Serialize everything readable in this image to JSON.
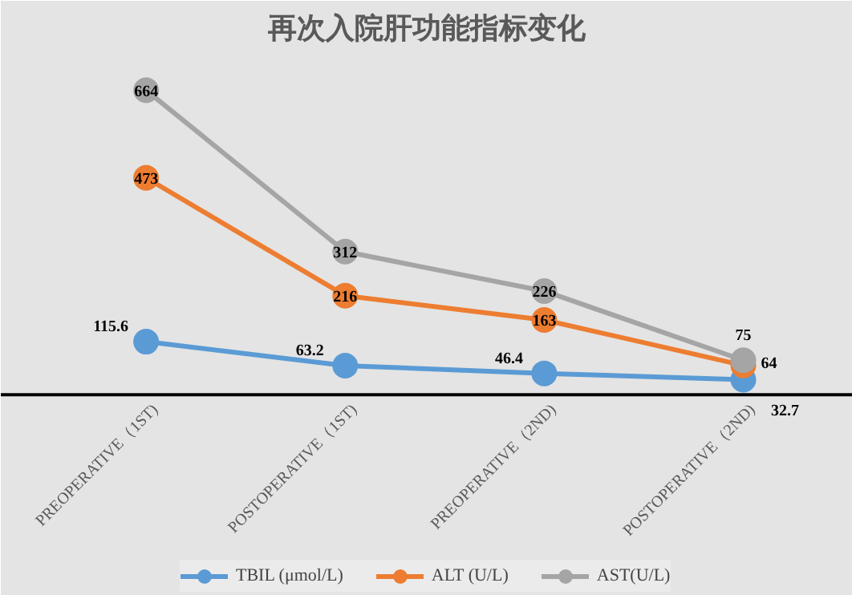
{
  "chart_data": {
    "type": "line",
    "title": "再次入院肝功能指标变化",
    "categories": [
      "PREOPERATIVE（1ST)",
      "POSTOPERATIVE（1ST)",
      "PREOPERATIVE（2ND)",
      "POSTOPERATIVE（2ND)"
    ],
    "series": [
      {
        "name": "TBIL (μmol/L)",
        "color": "#5b9bd5",
        "values": [
          115.6,
          63.2,
          46.4,
          32.7
        ]
      },
      {
        "name": "ALT (U/L)",
        "color": "#ed7d31",
        "values": [
          473,
          216,
          163,
          64
        ]
      },
      {
        "name": "AST(U/L)",
        "color": "#a5a5a5",
        "values": [
          664,
          312,
          226,
          75
        ]
      }
    ],
    "data_labels": true,
    "marker": "circle",
    "legend": "bottom"
  }
}
